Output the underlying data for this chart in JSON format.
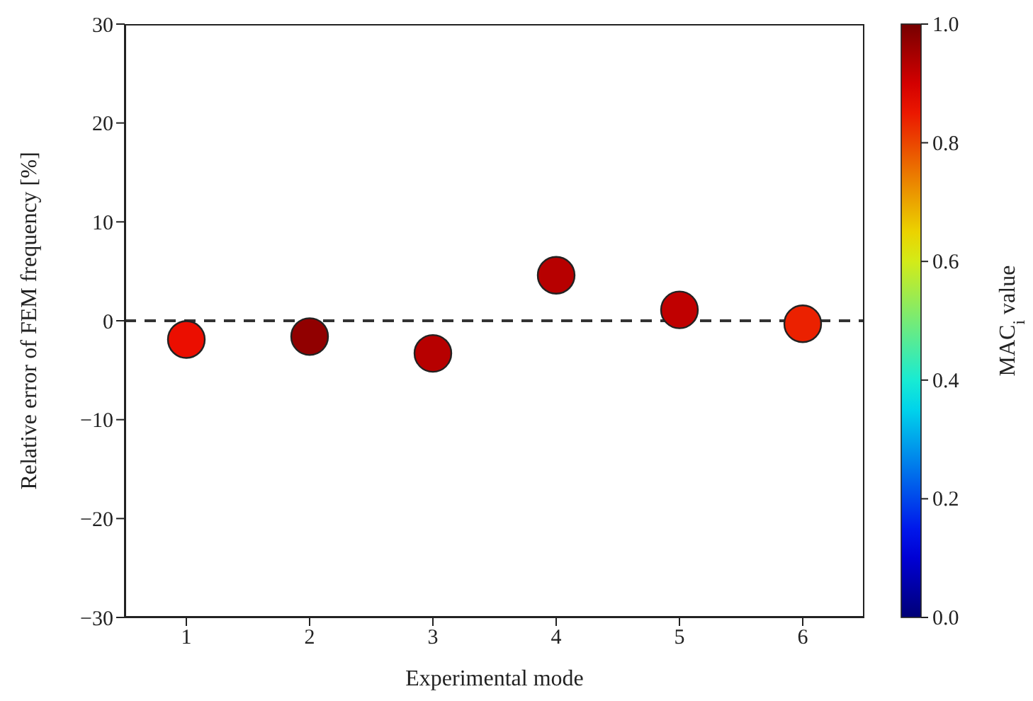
{
  "chart_data": {
    "type": "scatter",
    "xlabel": "Experimental mode",
    "ylabel": "Relative error of FEM frequency [%]",
    "clabel": "MAC$_{i}$ value",
    "x": [
      1,
      2,
      3,
      4,
      5,
      6
    ],
    "values": [
      -1.9,
      -1.6,
      -3.3,
      4.6,
      1.1,
      -0.3
    ],
    "cvalues": [
      0.86,
      0.97,
      0.93,
      0.93,
      0.92,
      0.84
    ],
    "xlim": [
      0.5,
      6.5
    ],
    "xticks": [
      1,
      2,
      3,
      4,
      5,
      6
    ],
    "ylim": [
      -30,
      30
    ],
    "yticks": [
      -30,
      -20,
      -10,
      0,
      10,
      20,
      30
    ],
    "clim": [
      0,
      1
    ],
    "cticks": [
      {
        "value": 0,
        "label": "0.0"
      },
      0.2,
      0.4,
      0.6,
      0.8,
      {
        "value": 1,
        "label": "1.0"
      }
    ],
    "ref_lines": [
      {
        "axis": "y",
        "value": 0,
        "line_style": "dashed",
        "color": "#333333"
      }
    ],
    "marker": "circle",
    "grid": false,
    "legend": false
  }
}
